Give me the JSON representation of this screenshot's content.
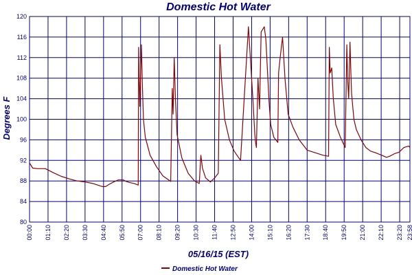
{
  "colors": {
    "grid": "#00007a",
    "text": "#000080",
    "series": "#8b0000",
    "background": "#ffffff"
  },
  "chart_data": {
    "type": "line",
    "title": "Domestic Hot Water",
    "xlabel": "05/16/15 (EST)",
    "ylabel": "Degrees F",
    "ylim": [
      80,
      120
    ],
    "xlim_hours": [
      0,
      23.98
    ],
    "grid": true,
    "legend_position": "bottom-center",
    "y_ticks": [
      "80",
      "84",
      "88",
      "92",
      "96",
      "100",
      "104",
      "108",
      "112",
      "116",
      "120"
    ],
    "x_tick_hours": [
      0,
      1.1667,
      2.3333,
      3.5,
      4.6667,
      5.8333,
      7.0,
      8.1667,
      9.3333,
      10.5,
      11.6667,
      12.8333,
      14.0,
      15.1667,
      16.3333,
      17.5,
      18.6667,
      19.8333,
      21.0,
      22.1667,
      23.3333,
      23.98
    ],
    "x_tick_labels": [
      "00:00",
      "01:10",
      "02:20",
      "03:30",
      "04:40",
      "05:50",
      "07:00",
      "08:10",
      "09:20",
      "10:30",
      "11:40",
      "12:50",
      "14:00",
      "15:10",
      "16:20",
      "17:30",
      "18:40",
      "19:50",
      "21:00",
      "22:10",
      "23:20",
      "23:58"
    ],
    "series": [
      {
        "name": "Domestic Hot Water",
        "x": [
          0,
          0.2,
          0.5,
          1.0,
          1.5,
          2.0,
          2.5,
          3.0,
          3.5,
          4.0,
          4.3,
          4.6,
          4.8,
          5.0,
          5.3,
          5.6,
          5.9,
          6.1,
          6.3,
          6.6,
          6.85,
          6.88,
          6.95,
          7.05,
          7.12,
          7.18,
          7.3,
          7.6,
          8.0,
          8.4,
          8.9,
          9.0,
          9.05,
          9.12,
          9.2,
          9.3,
          9.6,
          10.0,
          10.4,
          10.7,
          10.8,
          10.9,
          11.1,
          11.4,
          11.7,
          11.9,
          12.0,
          12.1,
          12.3,
          12.6,
          12.9,
          13.3,
          13.8,
          14.1,
          14.2,
          14.25,
          14.3,
          14.4,
          14.5,
          14.6,
          14.7,
          14.8,
          14.9,
          15.0,
          15.1,
          15.2,
          15.4,
          15.65,
          15.7,
          15.8,
          15.95,
          16.1,
          16.3,
          16.6,
          17.0,
          17.5,
          18.0,
          18.5,
          18.85,
          18.9,
          18.95,
          19.05,
          19.15,
          19.3,
          19.6,
          19.9,
          20.0,
          20.05,
          20.12,
          20.2,
          20.25,
          20.3,
          20.45,
          20.6,
          20.9,
          21.2,
          21.5,
          21.8,
          22.2,
          22.5,
          22.7,
          23.0,
          23.3,
          23.6,
          23.9,
          23.98
        ],
        "values": [
          91.5,
          90.5,
          90.4,
          90.4,
          89.6,
          88.9,
          88.4,
          88.0,
          87.8,
          87.5,
          87.2,
          86.9,
          86.9,
          87.3,
          87.8,
          88.2,
          88.2,
          87.9,
          87.7,
          87.5,
          87.2,
          114.0,
          102.5,
          114.5,
          106.0,
          100.0,
          96.5,
          93.0,
          90.8,
          89.0,
          87.9,
          106.0,
          101.0,
          112.0,
          104.0,
          97.0,
          92.5,
          89.5,
          88.0,
          87.5,
          93.0,
          90.5,
          88.6,
          87.8,
          88.7,
          89.5,
          114.5,
          108.0,
          100.0,
          96.0,
          93.8,
          92.0,
          118.0,
          103.0,
          97.0,
          95.5,
          94.5,
          108.0,
          102.0,
          117.0,
          117.5,
          118.0,
          115.5,
          109.5,
          103.5,
          99.0,
          96.5,
          95.5,
          109.0,
          112.0,
          116.0,
          108.0,
          101.0,
          98.5,
          96.0,
          94.0,
          93.5,
          93.0,
          92.8,
          114.0,
          109.0,
          110.0,
          104.0,
          99.0,
          96.5,
          94.5,
          114.5,
          108.0,
          104.0,
          115.0,
          110.0,
          105.0,
          100.0,
          98.0,
          96.0,
          94.5,
          93.8,
          93.5,
          93.0,
          92.6,
          92.8,
          93.3,
          93.6,
          94.5,
          94.8,
          94.5
        ]
      }
    ]
  }
}
